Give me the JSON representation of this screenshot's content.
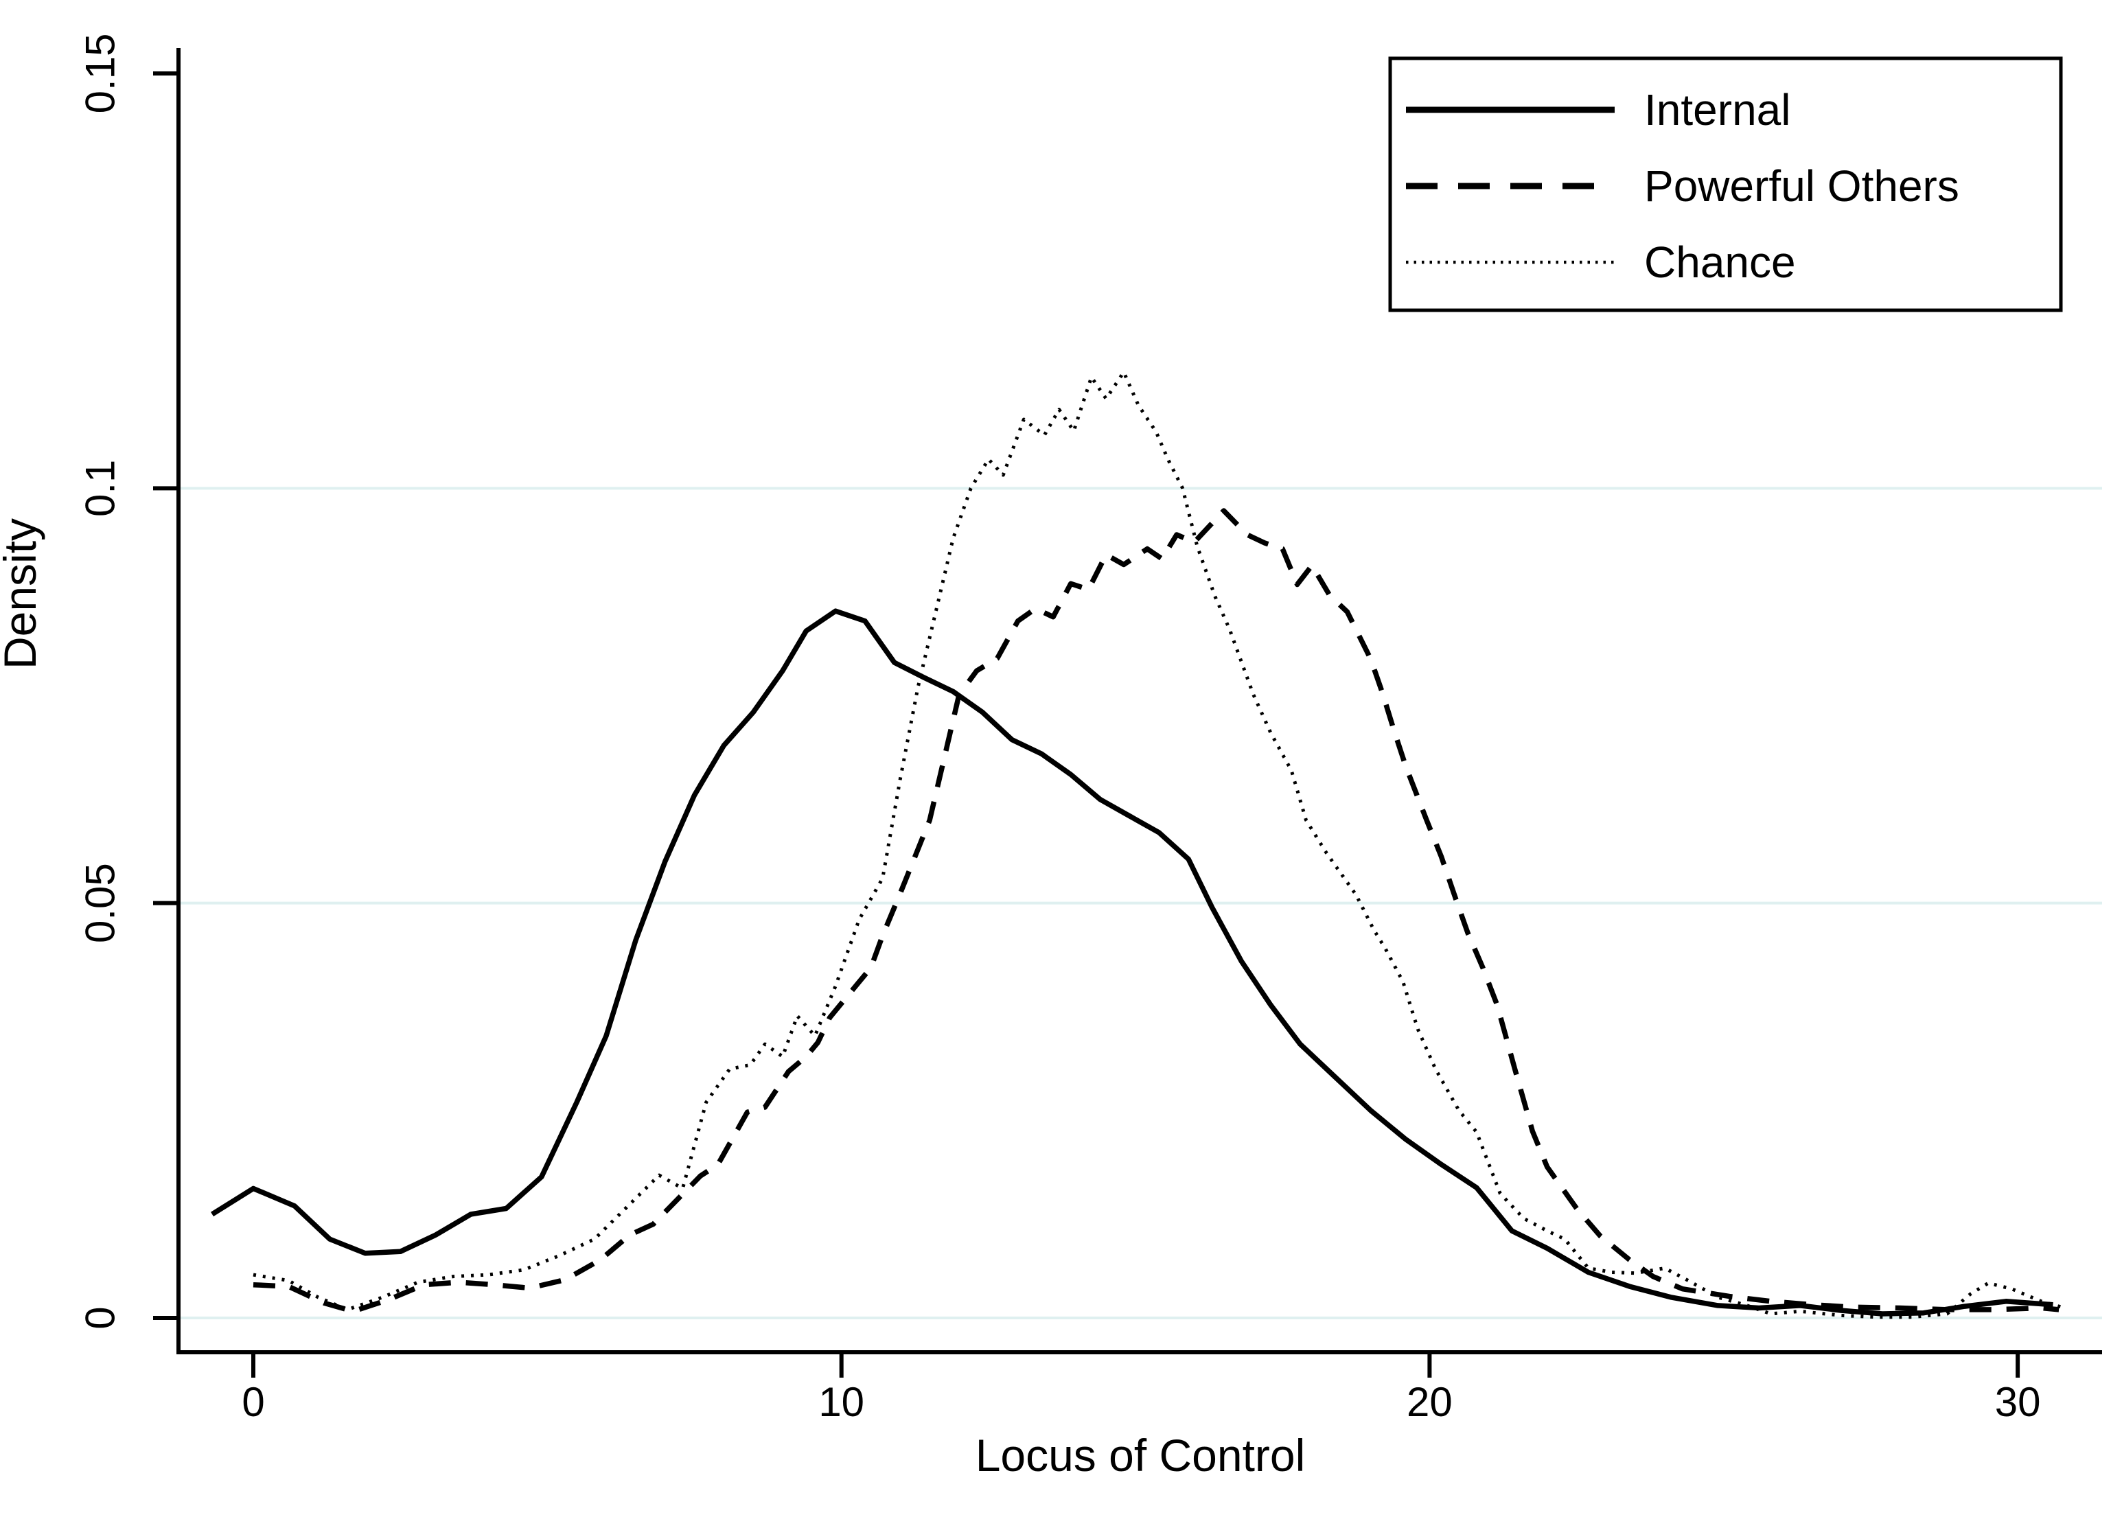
{
  "figure": {
    "background_color": "#ffffff",
    "line_color": "#000000",
    "gridline_color": "#dff0f0"
  },
  "y_axis": {
    "title": "Density",
    "tick_labels": [
      "0",
      "0.05",
      "0.1",
      "0.15"
    ],
    "tick_values": [
      0,
      0.05,
      0.1,
      0.15
    ],
    "grid_values": [
      0,
      0.05,
      0.1
    ]
  },
  "x_axis": {
    "title": "Locus of Control",
    "tick_labels": [
      "0",
      "10",
      "20",
      "30"
    ],
    "tick_values": [
      0,
      10,
      20,
      30
    ]
  },
  "legend": {
    "items": [
      {
        "label": "Internal",
        "style": "solid"
      },
      {
        "label": "Powerful Others",
        "style": "dashed"
      },
      {
        "label": "Chance",
        "style": "dotted"
      }
    ]
  },
  "chart_data": {
    "type": "line",
    "title": "",
    "xlabel": "Locus of Control",
    "ylabel": "Density",
    "xlim": [
      -1.2,
      31.5
    ],
    "ylim": [
      0,
      0.155
    ],
    "grid": "horizontal light gridlines at 0, 0.05, 0.1",
    "legend_position": "top-right",
    "series": [
      {
        "name": "Internal",
        "line_style": "solid",
        "points": [
          [
            -0.7,
            0.0125
          ],
          [
            0,
            0.0156
          ],
          [
            0.7,
            0.0135
          ],
          [
            1.3,
            0.0095
          ],
          [
            1.9,
            0.0078
          ],
          [
            2.5,
            0.008
          ],
          [
            3.1,
            0.01
          ],
          [
            3.7,
            0.0125
          ],
          [
            4.3,
            0.0132
          ],
          [
            4.9,
            0.017
          ],
          [
            5.5,
            0.026
          ],
          [
            6.0,
            0.034
          ],
          [
            6.5,
            0.0455
          ],
          [
            7.0,
            0.055
          ],
          [
            7.5,
            0.063
          ],
          [
            8.0,
            0.069
          ],
          [
            8.5,
            0.073
          ],
          [
            9.0,
            0.078
          ],
          [
            9.4,
            0.0828
          ],
          [
            9.9,
            0.0852
          ],
          [
            10.4,
            0.084
          ],
          [
            10.9,
            0.079
          ],
          [
            11.4,
            0.0772
          ],
          [
            11.9,
            0.0755
          ],
          [
            12.4,
            0.073
          ],
          [
            12.9,
            0.0697
          ],
          [
            13.4,
            0.068
          ],
          [
            13.9,
            0.0655
          ],
          [
            14.4,
            0.0625
          ],
          [
            14.9,
            0.0605
          ],
          [
            15.4,
            0.0585
          ],
          [
            15.9,
            0.0553
          ],
          [
            16.3,
            0.0495
          ],
          [
            16.8,
            0.043
          ],
          [
            17.3,
            0.0377
          ],
          [
            17.8,
            0.033
          ],
          [
            18.4,
            0.029
          ],
          [
            19.0,
            0.025
          ],
          [
            19.6,
            0.0215
          ],
          [
            20.2,
            0.0185
          ],
          [
            20.8,
            0.0157
          ],
          [
            21.4,
            0.0105
          ],
          [
            22.0,
            0.0084
          ],
          [
            22.7,
            0.0055
          ],
          [
            23.4,
            0.0038
          ],
          [
            24.1,
            0.0025
          ],
          [
            24.9,
            0.0015
          ],
          [
            25.6,
            0.0012
          ],
          [
            26.3,
            0.0015
          ],
          [
            27.0,
            0.0009
          ],
          [
            27.7,
            0.0005
          ],
          [
            28.4,
            0.0006
          ],
          [
            29.1,
            0.0014
          ],
          [
            29.8,
            0.002
          ],
          [
            30.6,
            0.0016
          ]
        ]
      },
      {
        "name": "Powerful Others",
        "line_style": "dashed",
        "points": [
          [
            0,
            0.004
          ],
          [
            0.6,
            0.0038
          ],
          [
            1.2,
            0.0018
          ],
          [
            1.7,
            0.0008
          ],
          [
            2.3,
            0.0022
          ],
          [
            2.9,
            0.004
          ],
          [
            3.5,
            0.0043
          ],
          [
            4.1,
            0.004
          ],
          [
            4.7,
            0.0036
          ],
          [
            5.3,
            0.0046
          ],
          [
            5.9,
            0.007
          ],
          [
            6.4,
            0.01
          ],
          [
            6.8,
            0.0113
          ],
          [
            7.2,
            0.0142
          ],
          [
            7.6,
            0.0171
          ],
          [
            7.9,
            0.0185
          ],
          [
            8.4,
            0.0248
          ],
          [
            8.7,
            0.0254
          ],
          [
            9.1,
            0.0297
          ],
          [
            9.4,
            0.0315
          ],
          [
            9.6,
            0.0332
          ],
          [
            9.8,
            0.0362
          ],
          [
            10.3,
            0.0405
          ],
          [
            10.5,
            0.0422
          ],
          [
            10.7,
            0.0461
          ],
          [
            11.0,
            0.0512
          ],
          [
            11.5,
            0.06
          ],
          [
            12.0,
            0.0751
          ],
          [
            12.3,
            0.078
          ],
          [
            12.65,
            0.0795
          ],
          [
            13.0,
            0.084
          ],
          [
            13.3,
            0.0855
          ],
          [
            13.6,
            0.0845
          ],
          [
            13.9,
            0.0885
          ],
          [
            14.2,
            0.0878
          ],
          [
            14.5,
            0.092
          ],
          [
            14.8,
            0.0908
          ],
          [
            15.2,
            0.0927
          ],
          [
            15.45,
            0.0915
          ],
          [
            15.7,
            0.0944
          ],
          [
            16.0,
            0.0935
          ],
          [
            16.5,
            0.0973
          ],
          [
            16.9,
            0.0944
          ],
          [
            17.2,
            0.0934
          ],
          [
            17.5,
            0.0927
          ],
          [
            17.75,
            0.0884
          ],
          [
            18.0,
            0.0907
          ],
          [
            18.3,
            0.0871
          ],
          [
            18.6,
            0.0851
          ],
          [
            19.0,
            0.0794
          ],
          [
            19.2,
            0.0753
          ],
          [
            19.4,
            0.0707
          ],
          [
            19.6,
            0.0664
          ],
          [
            19.95,
            0.06
          ],
          [
            20.2,
            0.0556
          ],
          [
            20.45,
            0.0504
          ],
          [
            20.65,
            0.0464
          ],
          [
            20.9,
            0.0423
          ],
          [
            21.15,
            0.0377
          ],
          [
            21.45,
            0.03
          ],
          [
            21.75,
            0.0225
          ],
          [
            22.0,
            0.0182
          ],
          [
            22.5,
            0.0132
          ],
          [
            22.9,
            0.0099
          ],
          [
            23.4,
            0.007
          ],
          [
            23.8,
            0.005
          ],
          [
            24.3,
            0.0035
          ],
          [
            25.1,
            0.0026
          ],
          [
            25.8,
            0.002
          ],
          [
            26.5,
            0.0016
          ],
          [
            27.2,
            0.0013
          ],
          [
            28.0,
            0.0012
          ],
          [
            28.8,
            0.001
          ],
          [
            29.6,
            0.001
          ],
          [
            30.4,
            0.0012
          ],
          [
            30.7,
            0.001
          ]
        ]
      },
      {
        "name": "Chance",
        "line_style": "dotted",
        "points": [
          [
            0,
            0.0052
          ],
          [
            0.6,
            0.0045
          ],
          [
            1.1,
            0.0025
          ],
          [
            1.6,
            0.001
          ],
          [
            2.2,
            0.0025
          ],
          [
            2.8,
            0.0043
          ],
          [
            3.4,
            0.005
          ],
          [
            4.0,
            0.0052
          ],
          [
            4.6,
            0.0058
          ],
          [
            5.2,
            0.0075
          ],
          [
            5.8,
            0.0095
          ],
          [
            6.3,
            0.013
          ],
          [
            6.9,
            0.0172
          ],
          [
            7.3,
            0.0156
          ],
          [
            7.7,
            0.026
          ],
          [
            8.1,
            0.03
          ],
          [
            8.45,
            0.0305
          ],
          [
            8.7,
            0.033
          ],
          [
            9.0,
            0.0315
          ],
          [
            9.25,
            0.0364
          ],
          [
            9.55,
            0.034
          ],
          [
            9.9,
            0.04
          ],
          [
            10.3,
            0.048
          ],
          [
            10.7,
            0.053
          ],
          [
            11.0,
            0.065
          ],
          [
            11.3,
            0.076
          ],
          [
            11.6,
            0.085
          ],
          [
            11.9,
            0.094
          ],
          [
            12.2,
            0.1
          ],
          [
            12.5,
            0.1035
          ],
          [
            12.75,
            0.1016
          ],
          [
            13.1,
            0.1083
          ],
          [
            13.45,
            0.1064
          ],
          [
            13.7,
            0.1095
          ],
          [
            13.95,
            0.1069
          ],
          [
            14.25,
            0.1134
          ],
          [
            14.5,
            0.1108
          ],
          [
            14.8,
            0.114
          ],
          [
            15.05,
            0.11
          ],
          [
            15.35,
            0.1068
          ],
          [
            15.55,
            0.1035
          ],
          [
            15.8,
            0.1
          ],
          [
            16.05,
            0.093
          ],
          [
            16.35,
            0.087
          ],
          [
            16.6,
            0.083
          ],
          [
            17.0,
            0.0752
          ],
          [
            17.3,
            0.0705
          ],
          [
            17.65,
            0.066
          ],
          [
            17.9,
            0.06
          ],
          [
            18.25,
            0.056
          ],
          [
            18.55,
            0.053
          ],
          [
            18.75,
            0.051
          ],
          [
            19.05,
            0.0468
          ],
          [
            19.25,
            0.0445
          ],
          [
            19.55,
            0.0405
          ],
          [
            19.8,
            0.0348
          ],
          [
            20.1,
            0.03
          ],
          [
            20.5,
            0.025
          ],
          [
            20.8,
            0.0224
          ],
          [
            21.2,
            0.015
          ],
          [
            21.6,
            0.012
          ],
          [
            22.0,
            0.0105
          ],
          [
            22.3,
            0.0095
          ],
          [
            22.7,
            0.006
          ],
          [
            23.1,
            0.0055
          ],
          [
            23.5,
            0.0054
          ],
          [
            24.0,
            0.006
          ],
          [
            24.4,
            0.0045
          ],
          [
            24.9,
            0.0025
          ],
          [
            25.4,
            0.0015
          ],
          [
            25.8,
            0.0005
          ],
          [
            26.3,
            0.0008
          ],
          [
            27.0,
            0.0003
          ],
          [
            27.6,
            0.0001
          ],
          [
            28.2,
            0.0001
          ],
          [
            28.8,
            0.0005
          ],
          [
            29.2,
            0.0029
          ],
          [
            29.5,
            0.0042
          ],
          [
            29.9,
            0.0035
          ],
          [
            30.4,
            0.002
          ],
          [
            30.8,
            0.0012
          ]
        ]
      }
    ]
  }
}
